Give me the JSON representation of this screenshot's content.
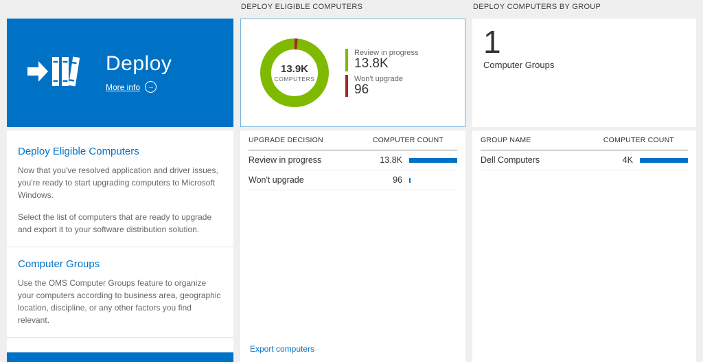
{
  "left_tile": {
    "title": "Deploy",
    "more_info": "More info",
    "sections": [
      {
        "heading": "Deploy Eligible Computers",
        "paragraphs": [
          "Now that you've resolved application and driver issues, you're ready to start upgrading computers to Microsoft Windows.",
          "Select the list of computers that are ready to upgrade and export it to your software distribution solution."
        ]
      },
      {
        "heading": "Computer Groups",
        "paragraphs": [
          "Use the OMS Computer Groups feature to organize your computers according to business area, geographic location, discipline, or any other factors you find relevant."
        ]
      }
    ]
  },
  "eligible_panel": {
    "title": "DEPLOY ELIGIBLE COMPUTERS",
    "donut": {
      "center_value": "13.9K",
      "center_label": "COMPUTERS",
      "legend": [
        {
          "label": "Review in progress",
          "value": "13.8K",
          "color": "#7fba00"
        },
        {
          "label": "Won't upgrade",
          "value": "96",
          "color": "#a4262c"
        }
      ]
    },
    "table": {
      "columns": [
        "UPGRADE DECISION",
        "COMPUTER COUNT"
      ],
      "rows": [
        {
          "label": "Review in progress",
          "value": "13.8K",
          "bar_pct": 100
        },
        {
          "label": "Won't upgrade",
          "value": "96",
          "bar_pct": 2
        }
      ]
    },
    "footer_link": "Export computers"
  },
  "groups_panel": {
    "title": "DEPLOY COMPUTERS BY GROUP",
    "count": "1",
    "count_label": "Computer Groups",
    "table": {
      "columns": [
        "GROUP NAME",
        "COMPUTER COUNT"
      ],
      "rows": [
        {
          "label": "Dell Computers",
          "value": "4K",
          "bar_pct": 100
        }
      ]
    }
  },
  "colors": {
    "accent_blue": "#0072c6",
    "green": "#7fba00",
    "red": "#a4262c"
  }
}
